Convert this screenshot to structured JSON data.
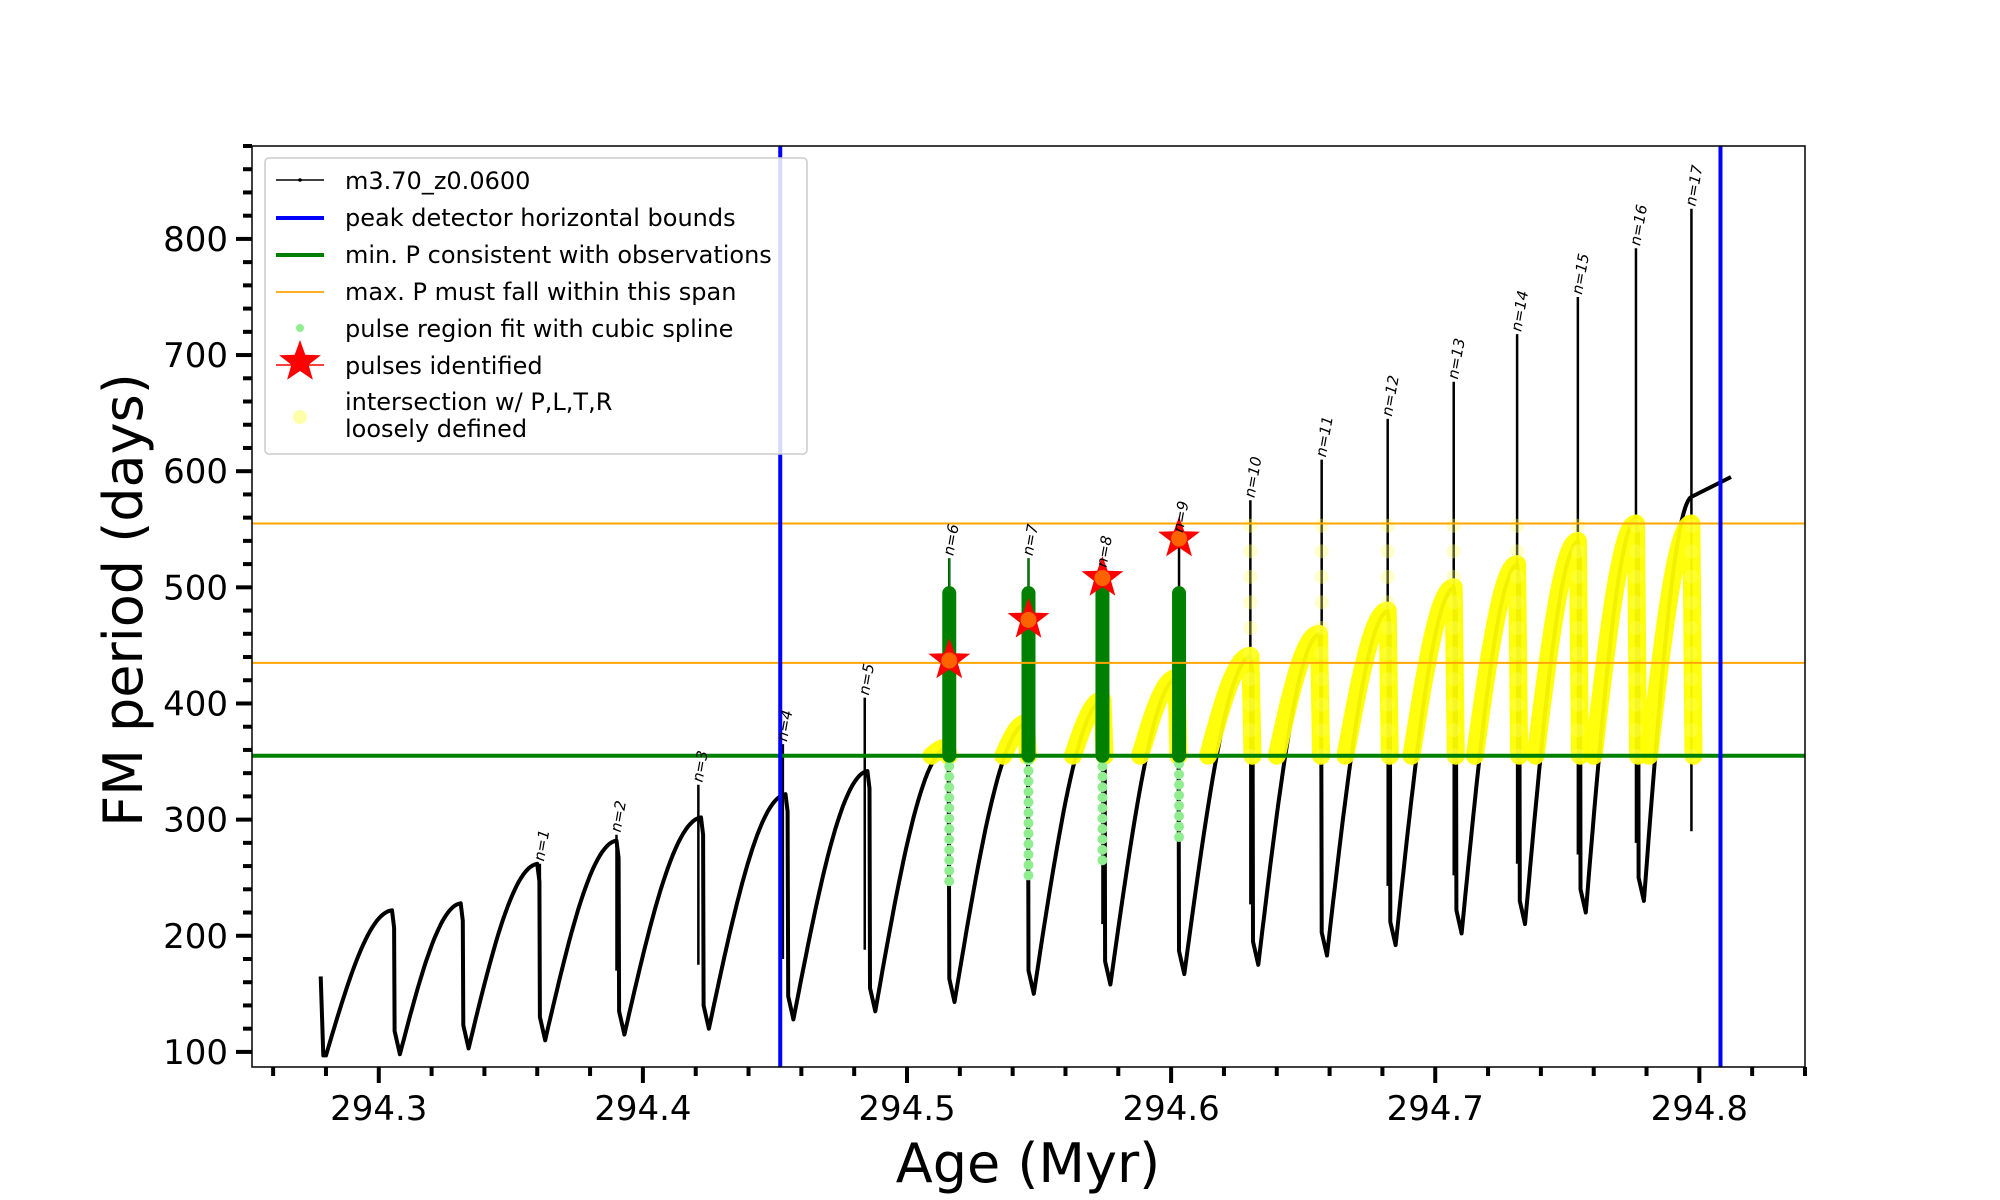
{
  "chart_data": {
    "type": "line",
    "title": "",
    "xlabel": "Age (Myr)",
    "ylabel": "FM period (days)",
    "xlim": [
      294.252,
      294.84
    ],
    "ylim": [
      87,
      880
    ],
    "grid": false,
    "xticks": [
      294.3,
      294.4,
      294.5,
      294.6,
      294.7,
      294.8
    ],
    "xtick_labels": [
      "294.3",
      "294.4",
      "294.5",
      "294.6",
      "294.7",
      "294.8"
    ],
    "yticks": [
      100,
      200,
      300,
      400,
      500,
      600,
      700,
      800
    ],
    "ytick_labels": [
      "100",
      "200",
      "300",
      "400",
      "500",
      "600",
      "700",
      "800"
    ],
    "legend_position": "top-left",
    "legend": [
      {
        "label": "m3.70_z0.0600",
        "kind": "line-marker",
        "color": "#000000"
      },
      {
        "label": "peak detector horizontal bounds",
        "kind": "line",
        "color": "#0000ff"
      },
      {
        "label": "min. P consistent with observations",
        "kind": "line",
        "color": "#008000"
      },
      {
        "label": "max. P must fall within this span",
        "kind": "thin-line",
        "color": "#ffa500"
      },
      {
        "label": "pulse region fit with cubic spline",
        "kind": "dot",
        "color": "#90ee90"
      },
      {
        "label": "pulses identified",
        "kind": "star",
        "color": "#ff0000"
      },
      {
        "label": "intersection w/ P,L,T,R",
        "label2": "loosely defined",
        "kind": "dot",
        "color": "#ffffaa"
      }
    ],
    "vertical_bounds": [
      294.452,
      294.808
    ],
    "min_P": 355,
    "max_P_span": [
      435,
      555
    ],
    "series_track": {
      "name": "m3.70_z0.0600",
      "start": {
        "x": 294.278,
        "y": 165
      },
      "cycles": [
        {
          "x_peak": 294.305,
          "peak": 222,
          "trough": 97
        },
        {
          "x_peak": 294.331,
          "peak": 228,
          "trough": 98
        },
        {
          "x_peak": 294.36,
          "peak": 262,
          "trough": 103
        },
        {
          "x_peak": 294.39,
          "peak": 282,
          "trough": 110
        },
        {
          "x_peak": 294.422,
          "peak": 302,
          "trough": 115
        },
        {
          "x_peak": 294.454,
          "peak": 322,
          "trough": 120
        },
        {
          "x_peak": 294.485,
          "peak": 342,
          "trough": 128
        },
        {
          "x_peak": 294.515,
          "peak": 362,
          "trough": 135
        },
        {
          "x_peak": 294.545,
          "peak": 383,
          "trough": 143
        },
        {
          "x_peak": 294.574,
          "peak": 403,
          "trough": 150
        },
        {
          "x_peak": 294.602,
          "peak": 422,
          "trough": 158
        },
        {
          "x_peak": 294.63,
          "peak": 441,
          "trough": 167
        },
        {
          "x_peak": 294.656,
          "peak": 460,
          "trough": 175
        },
        {
          "x_peak": 294.682,
          "peak": 480,
          "trough": 183
        },
        {
          "x_peak": 294.707,
          "peak": 500,
          "trough": 192
        },
        {
          "x_peak": 294.731,
          "peak": 520,
          "trough": 202
        },
        {
          "x_peak": 294.754,
          "peak": 540,
          "trough": 210
        },
        {
          "x_peak": 294.776,
          "peak": 560,
          "trough": 220
        },
        {
          "x_peak": 294.797,
          "peak": 578,
          "trough": 230
        }
      ],
      "end": {
        "x": 294.812,
        "y": 595
      }
    },
    "pulses": [
      {
        "n": "n=1",
        "x": 294.361,
        "spike": 262
      },
      {
        "n": "n=2",
        "x": 294.39,
        "spike": 287
      },
      {
        "n": "n=3",
        "x": 294.421,
        "spike": 330
      },
      {
        "n": "n=4",
        "x": 294.453,
        "spike": 365
      },
      {
        "n": "n=5",
        "x": 294.484,
        "spike": 405
      },
      {
        "n": "n=6",
        "x": 294.516,
        "spike": 525
      },
      {
        "n": "n=7",
        "x": 294.546,
        "spike": 525
      },
      {
        "n": "n=8",
        "x": 294.574,
        "spike": 515
      },
      {
        "n": "n=9",
        "x": 294.603,
        "spike": 545
      },
      {
        "n": "n=10",
        "x": 294.63,
        "spike": 575
      },
      {
        "n": "n=11",
        "x": 294.657,
        "spike": 610
      },
      {
        "n": "n=12",
        "x": 294.682,
        "spike": 645
      },
      {
        "n": "n=13",
        "x": 294.707,
        "spike": 677
      },
      {
        "n": "n=14",
        "x": 294.731,
        "spike": 718
      },
      {
        "n": "n=15",
        "x": 294.754,
        "spike": 750
      },
      {
        "n": "n=16",
        "x": 294.776,
        "spike": 792
      },
      {
        "n": "n=17",
        "x": 294.797,
        "spike": 826
      }
    ],
    "pulses_identified": [
      {
        "x": 294.516,
        "y": 437
      },
      {
        "x": 294.546,
        "y": 472
      },
      {
        "x": 294.574,
        "y": 508
      },
      {
        "x": 294.603,
        "y": 542
      }
    ],
    "spline_fit_columns": [
      {
        "x": 294.516,
        "from": 247,
        "to": 495,
        "spike": 525
      },
      {
        "x": 294.546,
        "from": 252,
        "to": 495,
        "spike": 525
      },
      {
        "x": 294.574,
        "from": 265,
        "to": 495
      },
      {
        "x": 294.603,
        "from": 285,
        "to": 495
      }
    ]
  }
}
